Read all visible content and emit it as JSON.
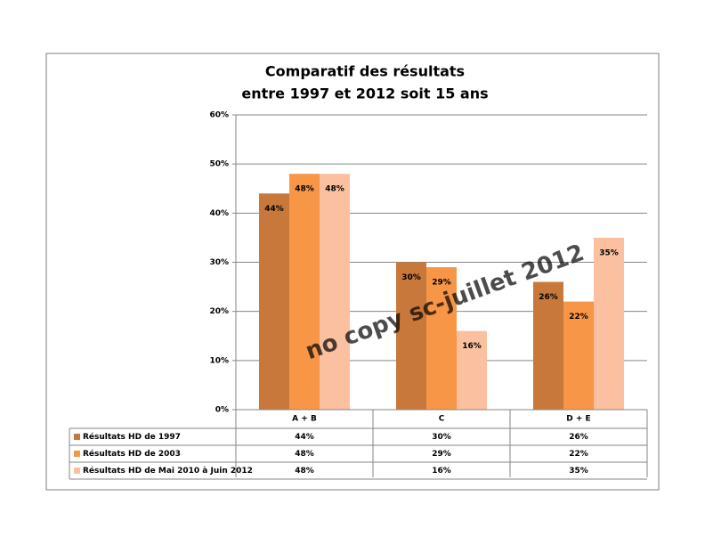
{
  "chart_data": {
    "type": "bar",
    "title": [
      "Comparatif  des résultats",
      "entre 1997 et 2012  soit 15 ans"
    ],
    "watermark": "no copy sc-juillet 2012",
    "categories": [
      "A + B",
      "C",
      "D + E"
    ],
    "series": [
      {
        "name": "Résultats HD de 1997",
        "color": "#c8783a",
        "values": [
          44,
          30,
          26
        ],
        "value_labels": [
          "44%",
          "30%",
          "26%"
        ]
      },
      {
        "name": "Résultats HD de 2003",
        "color": "#f79646",
        "values": [
          48,
          29,
          22
        ],
        "value_labels": [
          "48%",
          "29%",
          "22%"
        ]
      },
      {
        "name": "Résultats HD de Mai 2010 à Juin 2012",
        "color": "#fac09f",
        "values": [
          48,
          16,
          35
        ],
        "value_labels": [
          "48%",
          "16%",
          "35%"
        ]
      }
    ],
    "ylim": [
      0,
      60
    ],
    "yticks": [
      {
        "value": 0,
        "label": "0%"
      },
      {
        "value": 10,
        "label": "10%"
      },
      {
        "value": 20,
        "label": "20%"
      },
      {
        "value": 30,
        "label": "30%"
      },
      {
        "value": 40,
        "label": "40%"
      },
      {
        "value": 50,
        "label": "50%"
      },
      {
        "value": 60,
        "label": "60%"
      }
    ],
    "grid": true
  }
}
